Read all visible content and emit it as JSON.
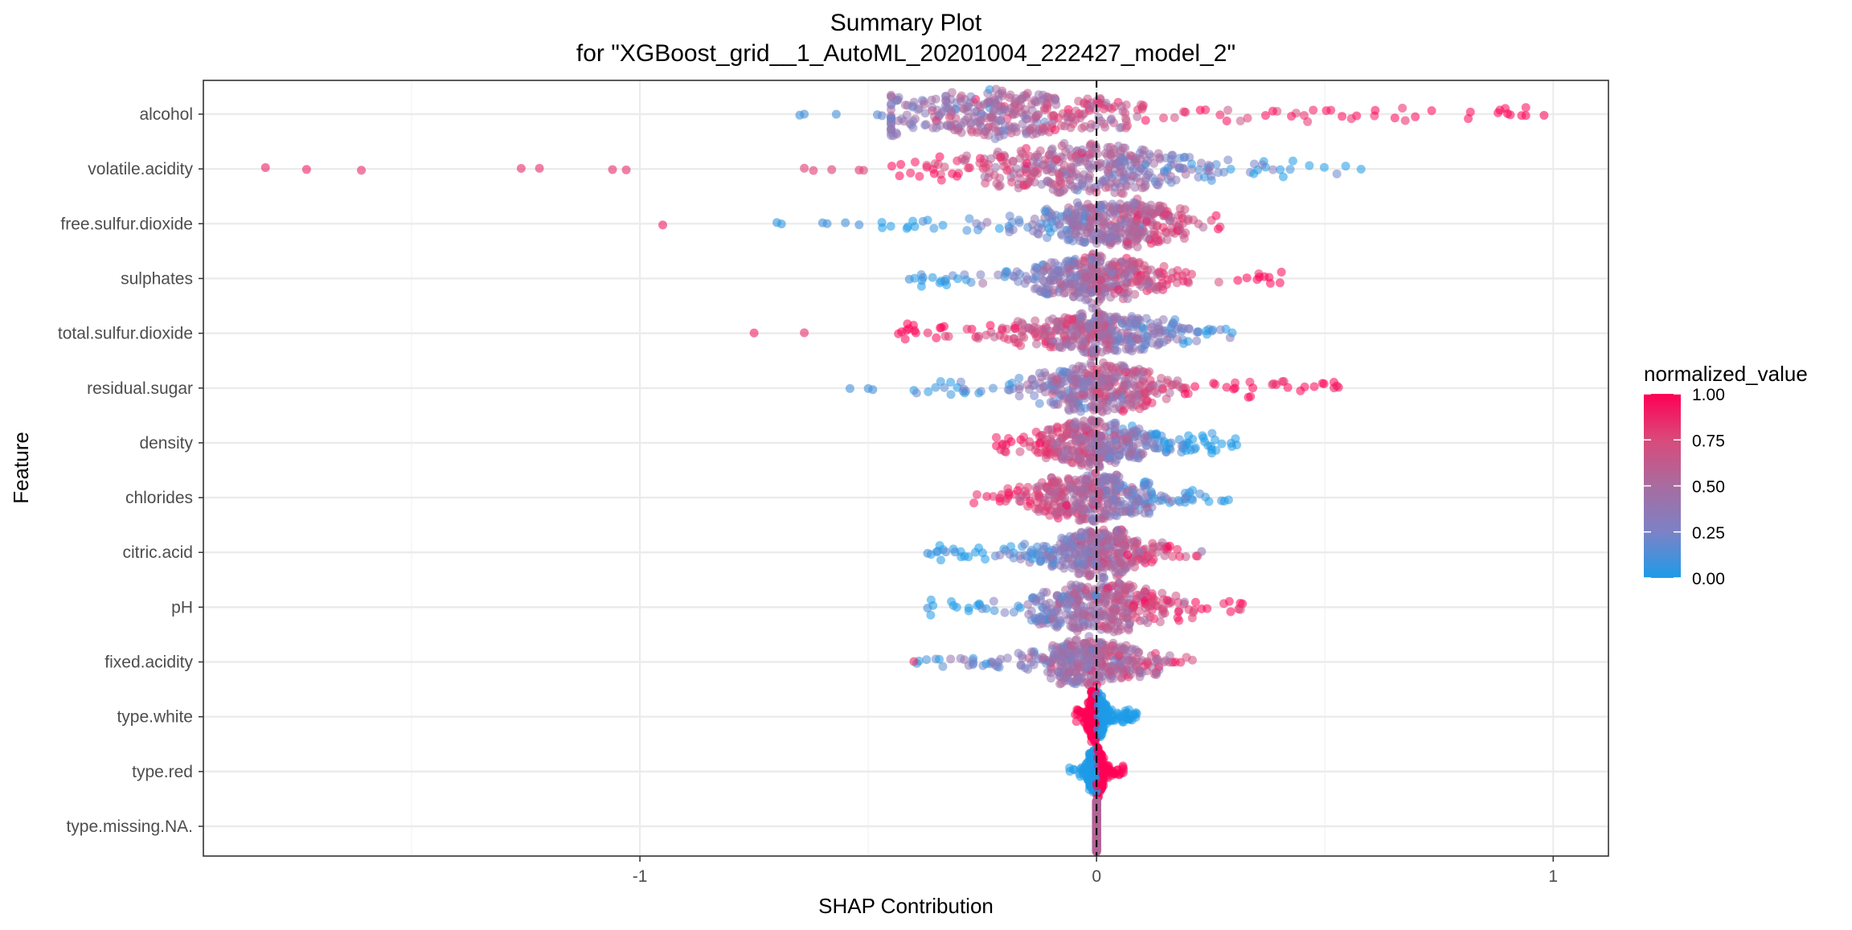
{
  "chart_data": {
    "type": "scatter",
    "subtype": "shap-beeswarm",
    "title": "Summary Plot",
    "subtitle": "for \"XGBoost_grid__1_AutoML_20201004_222427_model_2\"",
    "xlabel": "SHAP Contribution",
    "ylabel": "Feature",
    "xlim": [
      -1.956,
      1.121
    ],
    "xticks": [
      -1,
      0,
      1
    ],
    "xtick_labels": [
      "-1",
      "0",
      "1"
    ],
    "grid": true,
    "reference_line": {
      "x": 0,
      "style": "dashed"
    },
    "legend": {
      "title": "normalized_value",
      "position": "right",
      "ticks": [
        "1.00",
        "0.75",
        "0.50",
        "0.25",
        "0.00"
      ],
      "low_color": "#1E9BE8",
      "high_color": "#FF0055"
    },
    "features": [
      {
        "name": "alcohol",
        "range": [
          -0.45,
          0.98
        ],
        "center": -0.2,
        "sd": 0.16,
        "direction": 1,
        "outliers": [
          [
            -0.65,
            0.1
          ],
          [
            -0.64,
            0.1
          ],
          [
            -0.57,
            0.1
          ],
          [
            -0.48,
            0.15
          ],
          [
            -0.47,
            0.2
          ],
          [
            0.9,
            0.95
          ],
          [
            0.94,
            0.95
          ],
          [
            0.98,
            0.95
          ]
        ]
      },
      {
        "name": "volatile.acidity",
        "range": [
          -0.45,
          0.59
        ],
        "center": -0.02,
        "sd": 0.15,
        "direction": -1,
        "outliers": [
          [
            -1.82,
            0.9
          ],
          [
            -1.73,
            0.9
          ],
          [
            -1.61,
            0.85
          ],
          [
            -1.26,
            0.85
          ],
          [
            -1.22,
            0.85
          ],
          [
            -1.06,
            0.85
          ],
          [
            -1.03,
            0.85
          ],
          [
            -0.64,
            0.8
          ],
          [
            -0.62,
            0.8
          ],
          [
            -0.58,
            0.8
          ],
          [
            -0.52,
            0.8
          ],
          [
            -0.51,
            0.75
          ]
        ]
      },
      {
        "name": "free.sulfur.dioxide",
        "range": [
          -0.5,
          0.28
        ],
        "center": 0.04,
        "sd": 0.09,
        "direction": 1,
        "outliers": [
          [
            -0.95,
            0.9
          ],
          [
            -0.7,
            0.05
          ],
          [
            -0.69,
            0.05
          ],
          [
            -0.6,
            0.1
          ],
          [
            -0.59,
            0.1
          ],
          [
            -0.55,
            0.1
          ],
          [
            -0.52,
            0.1
          ]
        ]
      },
      {
        "name": "sulphates",
        "range": [
          -0.41,
          0.42
        ],
        "center": -0.01,
        "sd": 0.08,
        "direction": 1,
        "outliers": [
          [
            -0.41,
            0.1
          ],
          [
            -0.38,
            0.1
          ],
          [
            -0.33,
            0.1
          ]
        ]
      },
      {
        "name": "total.sulfur.dioxide",
        "range": [
          -0.44,
          0.3
        ],
        "center": 0.0,
        "sd": 0.09,
        "direction": -1,
        "outliers": [
          [
            -0.75,
            0.9
          ],
          [
            -0.64,
            0.85
          ]
        ]
      },
      {
        "name": "residual.sugar",
        "range": [
          -0.41,
          0.53
        ],
        "center": 0.0,
        "sd": 0.08,
        "direction": 1,
        "outliers": [
          [
            -0.54,
            0.1
          ],
          [
            -0.5,
            0.1
          ],
          [
            -0.49,
            0.1
          ],
          [
            0.52,
            0.9
          ],
          [
            0.53,
            0.9
          ]
        ]
      },
      {
        "name": "density",
        "range": [
          -0.22,
          0.31
        ],
        "center": 0.0,
        "sd": 0.08,
        "direction": -1,
        "outliers": []
      },
      {
        "name": "chlorides",
        "range": [
          -0.27,
          0.32
        ],
        "center": -0.01,
        "sd": 0.08,
        "direction": -1,
        "outliers": []
      },
      {
        "name": "citric.acid",
        "range": [
          -0.37,
          0.23
        ],
        "center": 0.01,
        "sd": 0.07,
        "direction": 1,
        "outliers": [
          [
            -0.37,
            0.1
          ],
          [
            -0.35,
            0.1
          ],
          [
            -0.33,
            0.15
          ],
          [
            -0.31,
            0.1
          ],
          [
            0.23,
            0.4
          ]
        ]
      },
      {
        "name": "pH",
        "range": [
          -0.37,
          0.32
        ],
        "center": 0.01,
        "sd": 0.08,
        "direction": 1,
        "outliers": [
          [
            -0.37,
            0.1
          ]
        ]
      },
      {
        "name": "fixed.acidity",
        "range": [
          -0.4,
          0.21
        ],
        "center": 0.0,
        "sd": 0.07,
        "direction": 0.6,
        "outliers": [
          [
            -0.4,
            0.85
          ],
          [
            -0.27,
            0.2
          ]
        ]
      },
      {
        "name": "type.white",
        "range": [
          -0.05,
          0.09
        ],
        "center": 0.0,
        "sd": 0.012,
        "direction": -1,
        "outliers": []
      },
      {
        "name": "type.red",
        "range": [
          -0.06,
          0.06
        ],
        "center": 0.0,
        "sd": 0.01,
        "direction": 1,
        "outliers": []
      },
      {
        "name": "type.missing.NA.",
        "range": [
          0,
          0
        ],
        "center": 0.0,
        "sd": 0.0,
        "direction": 0,
        "outliers": []
      }
    ]
  }
}
